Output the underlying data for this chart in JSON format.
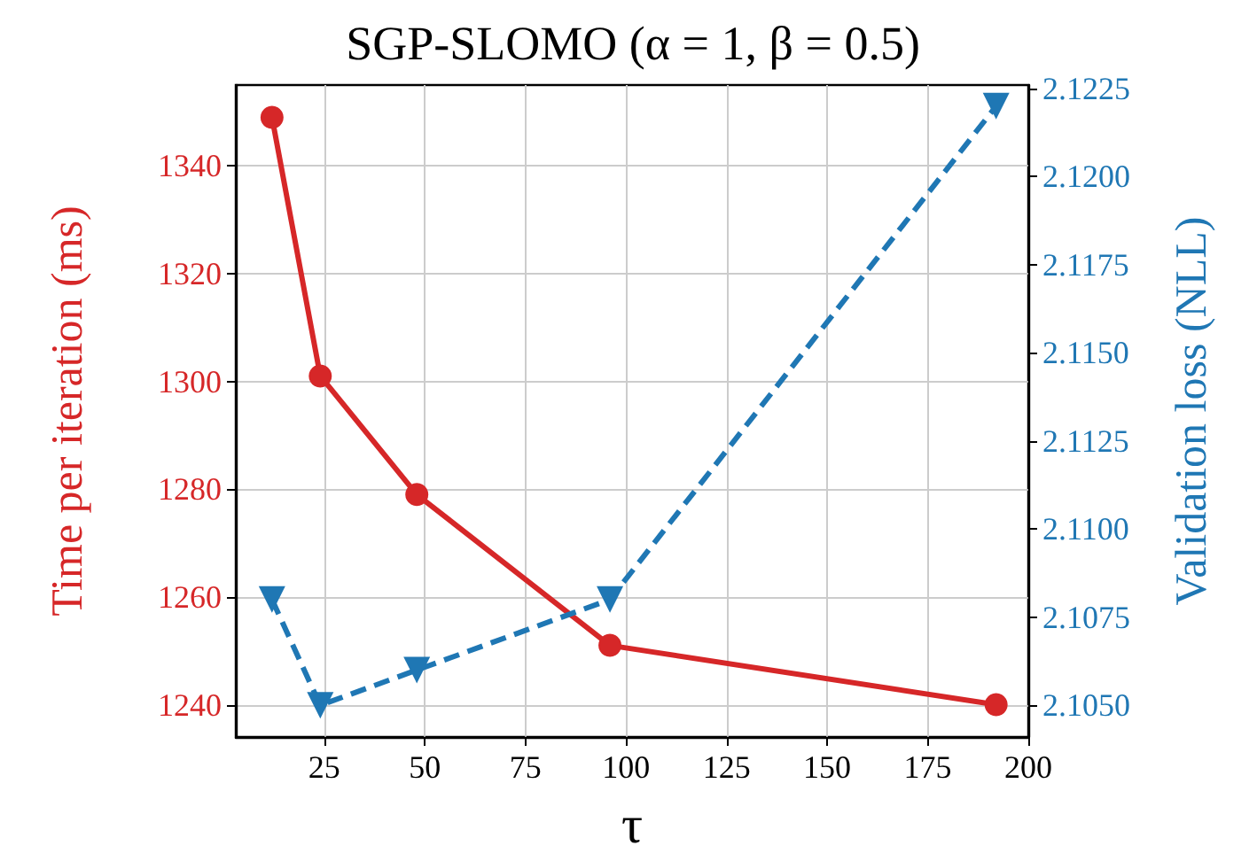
{
  "chart_data": {
    "type": "line",
    "title": "SGP-SLOMO (α = 1, β = 0.5)",
    "xlabel": "τ",
    "ylabel": "Time per iteration (ms)",
    "y2label": "Validation loss (NLL)",
    "x": [
      12,
      24,
      48,
      96,
      192
    ],
    "series": [
      {
        "color": "#d62728",
        "values": [
          1349,
          1301,
          1279,
          1251,
          1240
        ],
        "marker": "circle",
        "line_style": "solid"
      },
      {
        "color": "#1f77b4",
        "values": [
          2.108,
          2.105,
          2.106,
          2.108,
          2.122
        ],
        "axis": "y2",
        "marker": "triangle-down",
        "line_style": "dashed"
      }
    ],
    "xlim": [
      3,
      200
    ],
    "xticks": [
      25,
      50,
      75,
      100,
      125,
      150,
      175,
      200
    ],
    "ylim": [
      1234,
      1355
    ],
    "yticks": [
      1240,
      1260,
      1280,
      1300,
      1320,
      1340
    ],
    "y2lim": [
      2.1041,
      2.1226
    ],
    "y2ticks": [
      {
        "value": 2.105,
        "label": "2.1050"
      },
      {
        "value": 2.1075,
        "label": "2.1075"
      },
      {
        "value": 2.11,
        "label": "2.1100"
      },
      {
        "value": 2.1125,
        "label": "2.1125"
      },
      {
        "value": 2.115,
        "label": "2.1150"
      },
      {
        "value": 2.1175,
        "label": "2.1175"
      },
      {
        "value": 2.12,
        "label": "2.1200"
      },
      {
        "value": 2.1225,
        "label": "2.1225"
      }
    ],
    "grid": true
  }
}
